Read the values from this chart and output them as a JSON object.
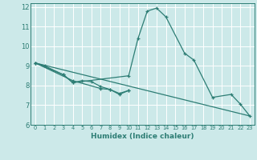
{
  "xlabel": "Humidex (Indice chaleur)",
  "background_color": "#cce9e9",
  "grid_color": "#ffffff",
  "line_color": "#2d7d74",
  "xlim": [
    -0.5,
    23.5
  ],
  "ylim": [
    6,
    12.2
  ],
  "yticks": [
    6,
    7,
    8,
    9,
    10,
    11,
    12
  ],
  "xtick_labels": [
    "0",
    "1",
    "2",
    "3",
    "4",
    "5",
    "6",
    "7",
    "8",
    "9",
    "10",
    "11",
    "12",
    "13",
    "14",
    "15",
    "16",
    "17",
    "18",
    "19",
    "20",
    "21",
    "22",
    "23"
  ],
  "series": [
    {
      "x": [
        0,
        1,
        3,
        4,
        10,
        11,
        12,
        13,
        14,
        16,
        17,
        19,
        21,
        22,
        23
      ],
      "y": [
        9.15,
        9.0,
        8.55,
        8.15,
        8.5,
        10.4,
        11.8,
        11.95,
        11.5,
        9.65,
        9.3,
        7.4,
        7.55,
        7.05,
        6.45
      ],
      "has_markers": true
    },
    {
      "x": [
        0,
        3,
        4,
        5,
        6,
        7,
        8,
        9,
        10
      ],
      "y": [
        9.15,
        8.55,
        8.15,
        8.25,
        8.2,
        7.95,
        7.8,
        7.55,
        7.75
      ],
      "has_markers": true
    },
    {
      "x": [
        0,
        4,
        7,
        8,
        9,
        10
      ],
      "y": [
        9.15,
        8.25,
        7.85,
        7.8,
        7.6,
        7.75
      ],
      "has_markers": true
    },
    {
      "x": [
        0,
        23
      ],
      "y": [
        9.15,
        6.45
      ],
      "has_markers": false
    }
  ]
}
